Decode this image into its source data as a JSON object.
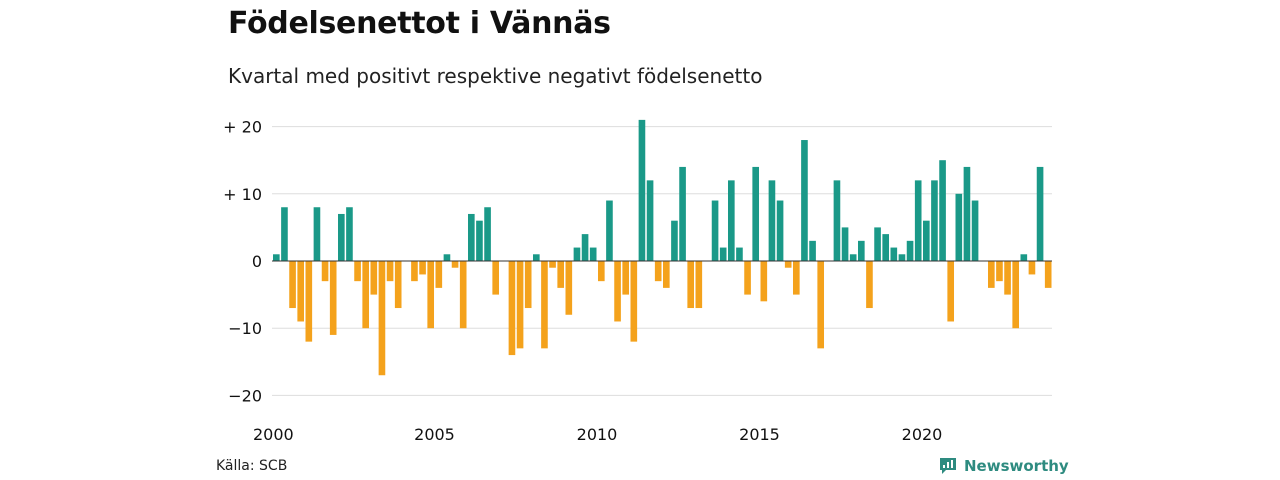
{
  "header": {
    "title": "Födelsenettot i Vännäs",
    "subtitle": "Kvartal med positivt respektive negativt födelsenetto"
  },
  "footer": {
    "source": "Källa: SCB",
    "brand": "Newsworthy"
  },
  "colors": {
    "positive": "#1a9988",
    "negative": "#f4a21c",
    "grid": "#dddddd",
    "brand": "#2e8b80"
  },
  "icons": {
    "brand": "newsworthy-logo-icon"
  },
  "chart_data": {
    "type": "bar",
    "start_year": 2000,
    "quarters_per_year": 4,
    "ylim": [
      -21,
      23
    ],
    "y_ticks": [
      20,
      10,
      0,
      -10,
      -20
    ],
    "y_tick_labels": [
      "+ 20",
      "+ 10",
      "0",
      "−10",
      "−20"
    ],
    "x_ticks": [
      2000,
      2005,
      2010,
      2015,
      2020
    ],
    "x_tick_labels": [
      "2000",
      "2005",
      "2010",
      "2015",
      "2020"
    ],
    "grid": true,
    "values": [
      1,
      8,
      -7,
      -9,
      -12,
      8,
      -3,
      -11,
      7,
      8,
      -3,
      -10,
      -5,
      -17,
      -3,
      -7,
      0,
      -3,
      -2,
      -10,
      -4,
      1,
      -1,
      -10,
      7,
      6,
      8,
      -5,
      0,
      -14,
      -13,
      -7,
      1,
      -13,
      -1,
      -4,
      -8,
      2,
      4,
      2,
      -3,
      9,
      -9,
      -5,
      -12,
      21,
      12,
      -3,
      -4,
      6,
      14,
      -7,
      -7,
      0,
      9,
      2,
      12,
      2,
      -5,
      14,
      -6,
      12,
      9,
      -1,
      -5,
      18,
      3,
      -13,
      0,
      12,
      5,
      1,
      3,
      -7,
      5,
      4,
      2,
      1,
      3,
      12,
      6,
      12,
      15,
      -9,
      10,
      14,
      9,
      0,
      -4,
      -3,
      -5,
      -10,
      1,
      -2,
      14,
      -4
    ]
  }
}
